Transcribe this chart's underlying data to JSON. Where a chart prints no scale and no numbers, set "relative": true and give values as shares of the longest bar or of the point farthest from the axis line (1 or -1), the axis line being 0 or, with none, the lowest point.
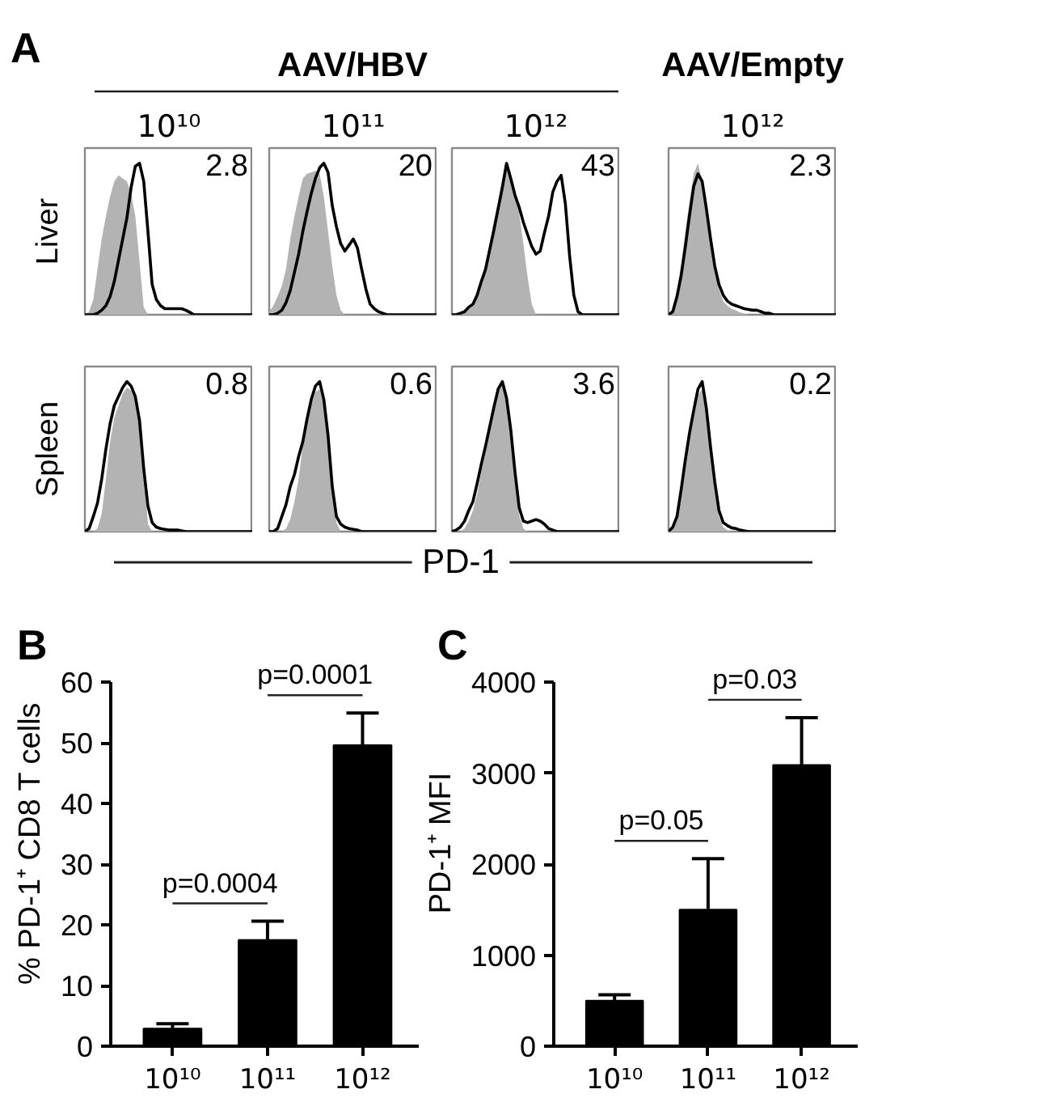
{
  "chart_data": [
    {
      "type": "other",
      "title": "A",
      "annotations": [
        "AAV/HBV",
        "AAV/Empty"
      ],
      "xlabel": "PD-1"
    },
    {
      "type": "area",
      "relative": true,
      "title": "10¹⁰",
      "ylabel": "Liver",
      "annotations": [
        "2.8"
      ],
      "categories": [
        null,
        null,
        null,
        null,
        null,
        null,
        null,
        null,
        null,
        null,
        null,
        null,
        null,
        null,
        null,
        null,
        null,
        null,
        null,
        null,
        null,
        null,
        null,
        null,
        null,
        null,
        null,
        null,
        null,
        null,
        null,
        null,
        null,
        null,
        null,
        null,
        null,
        null,
        null,
        null,
        null
      ],
      "series": [
        {
          "type": "area",
          "color": "#b3b3b3",
          "values": [
            0,
            0.02,
            0.1,
            0.3,
            0.5,
            0.65,
            0.78,
            0.88,
            0.92,
            0.9,
            0.88,
            0.8,
            0.65,
            0.35,
            0.05,
            0,
            0,
            0,
            0,
            0,
            0,
            0,
            0,
            0,
            0,
            0,
            0,
            0,
            0,
            0,
            0,
            0,
            0,
            0,
            0,
            0,
            0,
            0,
            0,
            0,
            0
          ]
        },
        {
          "type": "line",
          "color": "#000000",
          "values": [
            0,
            0,
            0,
            0.01,
            0.03,
            0.06,
            0.12,
            0.22,
            0.36,
            0.5,
            0.64,
            0.84,
            0.98,
            1,
            0.88,
            0.55,
            0.2,
            0.1,
            0.06,
            0.04,
            0.04,
            0.04,
            0.04,
            0.04,
            0.03,
            0.015,
            0,
            0,
            0,
            0,
            0,
            0,
            0,
            0,
            0,
            0,
            0,
            0,
            0,
            0,
            0
          ]
        }
      ]
    },
    {
      "type": "area",
      "relative": true,
      "title": "10¹¹",
      "annotations": [
        "20"
      ],
      "categories": [
        null,
        null,
        null,
        null,
        null,
        null,
        null,
        null,
        null,
        null,
        null,
        null,
        null,
        null,
        null,
        null,
        null,
        null,
        null,
        null,
        null,
        null,
        null,
        null,
        null,
        null,
        null,
        null,
        null,
        null,
        null,
        null,
        null,
        null,
        null,
        null,
        null,
        null,
        null,
        null,
        null
      ],
      "series": [
        {
          "type": "area",
          "color": "#b3b3b3",
          "values": [
            0.02,
            0.06,
            0.12,
            0.19,
            0.3,
            0.5,
            0.65,
            0.78,
            0.9,
            0.93,
            0.94,
            0.95,
            0.93,
            0.78,
            0.55,
            0.32,
            0.13,
            0.03,
            0,
            0,
            0,
            0,
            0,
            0,
            0,
            0,
            0,
            0,
            0,
            0,
            0,
            0,
            0,
            0,
            0,
            0,
            0,
            0,
            0,
            0,
            0
          ]
        },
        {
          "type": "line",
          "color": "#000000",
          "values": [
            0,
            0,
            0.01,
            0.03,
            0.08,
            0.16,
            0.28,
            0.4,
            0.55,
            0.68,
            0.8,
            0.9,
            0.97,
            1,
            0.94,
            0.72,
            0.58,
            0.47,
            0.42,
            0.46,
            0.5,
            0.44,
            0.3,
            0.17,
            0.07,
            0.04,
            0.02,
            0.01,
            0,
            0,
            0,
            0,
            0,
            0,
            0,
            0,
            0,
            0,
            0,
            0,
            0
          ]
        }
      ]
    },
    {
      "type": "area",
      "relative": true,
      "title": "10¹²",
      "annotations": [
        "43"
      ],
      "categories": [
        null,
        null,
        null,
        null,
        null,
        null,
        null,
        null,
        null,
        null,
        null,
        null,
        null,
        null,
        null,
        null,
        null,
        null,
        null,
        null,
        null,
        null,
        null,
        null,
        null,
        null,
        null,
        null,
        null,
        null,
        null,
        null,
        null,
        null,
        null,
        null,
        null,
        null,
        null,
        null,
        null
      ],
      "series": [
        {
          "type": "area",
          "color": "#b3b3b3",
          "values": [
            0,
            0,
            0.01,
            0.02,
            0.04,
            0.08,
            0.13,
            0.22,
            0.34,
            0.47,
            0.62,
            0.75,
            0.9,
            0.98,
            0.92,
            0.81,
            0.67,
            0.47,
            0.25,
            0.07,
            0,
            0,
            0,
            0,
            0,
            0,
            0,
            0,
            0,
            0,
            0,
            0,
            0,
            0,
            0,
            0,
            0,
            0,
            0,
            0,
            0
          ]
        },
        {
          "type": "line",
          "color": "#000000",
          "values": [
            0,
            0,
            0.01,
            0.02,
            0.05,
            0.07,
            0.13,
            0.22,
            0.3,
            0.43,
            0.56,
            0.7,
            0.84,
            1,
            0.9,
            0.79,
            0.71,
            0.61,
            0.53,
            0.45,
            0.4,
            0.42,
            0.54,
            0.65,
            0.81,
            0.88,
            0.92,
            0.73,
            0.39,
            0.13,
            0.02,
            0,
            0,
            0,
            0,
            0,
            0,
            0,
            0,
            0,
            0
          ]
        }
      ]
    },
    {
      "type": "area",
      "relative": true,
      "title": "10¹²",
      "annotations": [
        "2.3"
      ],
      "categories": [
        null,
        null,
        null,
        null,
        null,
        null,
        null,
        null,
        null,
        null,
        null,
        null,
        null,
        null,
        null,
        null,
        null,
        null,
        null,
        null,
        null,
        null,
        null,
        null,
        null,
        null,
        null,
        null,
        null,
        null,
        null,
        null,
        null,
        null,
        null,
        null,
        null,
        null,
        null,
        null,
        null
      ],
      "series": [
        {
          "type": "area",
          "color": "#b3b3b3",
          "values": [
            0,
            0.04,
            0.15,
            0.33,
            0.55,
            0.75,
            0.93,
            1,
            0.88,
            0.7,
            0.48,
            0.3,
            0.17,
            0.09,
            0.06,
            0.04,
            0.03,
            0.015,
            0.01,
            0,
            0,
            0,
            0,
            0,
            0,
            0,
            0,
            0,
            0,
            0,
            0,
            0,
            0,
            0,
            0,
            0,
            0,
            0,
            0,
            0,
            0
          ]
        },
        {
          "type": "line",
          "color": "#000000",
          "values": [
            0,
            0.02,
            0.12,
            0.26,
            0.45,
            0.66,
            0.85,
            0.93,
            0.88,
            0.7,
            0.5,
            0.32,
            0.2,
            0.13,
            0.09,
            0.07,
            0.06,
            0.05,
            0.04,
            0.035,
            0.03,
            0.03,
            0.02,
            0.01,
            0.01,
            0,
            0,
            0,
            0,
            0,
            0,
            0,
            0,
            0,
            0,
            0,
            0,
            0,
            0,
            0,
            0
          ]
        }
      ]
    },
    {
      "type": "area",
      "relative": true,
      "ylabel": "Spleen",
      "annotations": [
        "0.8"
      ],
      "categories": [
        null,
        null,
        null,
        null,
        null,
        null,
        null,
        null,
        null,
        null,
        null,
        null,
        null,
        null,
        null,
        null,
        null,
        null,
        null,
        null,
        null,
        null,
        null,
        null,
        null,
        null,
        null,
        null,
        null,
        null,
        null,
        null,
        null,
        null,
        null,
        null,
        null,
        null,
        null,
        null,
        null
      ],
      "series": [
        {
          "type": "area",
          "color": "#b3b3b3",
          "values": [
            0,
            0,
            0,
            0.02,
            0.12,
            0.35,
            0.6,
            0.76,
            0.84,
            0.92,
            0.96,
            0.94,
            0.88,
            0.72,
            0.4,
            0.05,
            0,
            0,
            0,
            0,
            0,
            0,
            0,
            0,
            0,
            0,
            0,
            0,
            0,
            0,
            0,
            0,
            0,
            0,
            0,
            0,
            0,
            0,
            0,
            0,
            0
          ]
        },
        {
          "type": "line",
          "color": "#000000",
          "values": [
            0,
            0.02,
            0.1,
            0.19,
            0.35,
            0.55,
            0.72,
            0.84,
            0.9,
            0.96,
            1,
            0.97,
            0.9,
            0.74,
            0.42,
            0.17,
            0.06,
            0.03,
            0.02,
            0.015,
            0.01,
            0.01,
            0.01,
            0.005,
            0,
            0,
            0,
            0,
            0,
            0,
            0,
            0,
            0,
            0,
            0,
            0,
            0,
            0,
            0,
            0,
            0
          ]
        }
      ]
    },
    {
      "type": "area",
      "relative": true,
      "annotations": [
        "0.6"
      ],
      "categories": [
        null,
        null,
        null,
        null,
        null,
        null,
        null,
        null,
        null,
        null,
        null,
        null,
        null,
        null,
        null,
        null,
        null,
        null,
        null,
        null,
        null,
        null,
        null,
        null,
        null,
        null,
        null,
        null,
        null,
        null,
        null,
        null,
        null,
        null,
        null,
        null,
        null,
        null,
        null,
        null,
        null
      ],
      "series": [
        {
          "type": "area",
          "color": "#b3b3b3",
          "values": [
            0,
            0,
            0,
            0,
            0.02,
            0.08,
            0.2,
            0.35,
            0.58,
            0.75,
            0.85,
            0.93,
            0.95,
            0.85,
            0.6,
            0.3,
            0.06,
            0,
            0,
            0,
            0,
            0,
            0,
            0,
            0,
            0,
            0,
            0,
            0,
            0,
            0,
            0,
            0,
            0,
            0,
            0,
            0,
            0,
            0,
            0,
            0
          ]
        },
        {
          "type": "line",
          "color": "#000000",
          "values": [
            0,
            0,
            0.02,
            0.1,
            0.18,
            0.3,
            0.38,
            0.5,
            0.6,
            0.75,
            0.88,
            0.97,
            1,
            0.88,
            0.64,
            0.3,
            0.1,
            0.05,
            0.03,
            0.02,
            0.015,
            0.01,
            0,
            0,
            0,
            0,
            0,
            0,
            0,
            0,
            0,
            0,
            0,
            0,
            0,
            0,
            0,
            0,
            0,
            0,
            0
          ]
        }
      ]
    },
    {
      "type": "area",
      "relative": true,
      "annotations": [
        "3.6"
      ],
      "categories": [
        null,
        null,
        null,
        null,
        null,
        null,
        null,
        null,
        null,
        null,
        null,
        null,
        null,
        null,
        null,
        null,
        null,
        null,
        null,
        null,
        null,
        null,
        null,
        null,
        null,
        null,
        null,
        null,
        null,
        null,
        null,
        null,
        null,
        null,
        null,
        null,
        null,
        null,
        null,
        null,
        null
      ],
      "series": [
        {
          "type": "area",
          "color": "#b3b3b3",
          "values": [
            0,
            0,
            0,
            0.02,
            0.07,
            0.14,
            0.25,
            0.4,
            0.53,
            0.68,
            0.82,
            0.93,
            0.98,
            0.86,
            0.62,
            0.34,
            0.11,
            0.02,
            0,
            0,
            0,
            0,
            0,
            0,
            0,
            0,
            0,
            0,
            0,
            0,
            0,
            0,
            0,
            0,
            0,
            0,
            0,
            0,
            0,
            0,
            0
          ]
        },
        {
          "type": "line",
          "color": "#000000",
          "values": [
            0,
            0.01,
            0.03,
            0.07,
            0.14,
            0.2,
            0.32,
            0.45,
            0.57,
            0.7,
            0.83,
            0.95,
            1,
            0.89,
            0.68,
            0.4,
            0.16,
            0.07,
            0.06,
            0.07,
            0.08,
            0.07,
            0.05,
            0.02,
            0.01,
            0,
            0,
            0,
            0,
            0,
            0,
            0,
            0,
            0,
            0,
            0,
            0,
            0,
            0,
            0,
            0
          ]
        }
      ]
    },
    {
      "type": "area",
      "relative": true,
      "annotations": [
        "0.2"
      ],
      "categories": [
        null,
        null,
        null,
        null,
        null,
        null,
        null,
        null,
        null,
        null,
        null,
        null,
        null,
        null,
        null,
        null,
        null,
        null,
        null,
        null,
        null,
        null,
        null,
        null,
        null,
        null,
        null,
        null,
        null,
        null,
        null,
        null,
        null,
        null,
        null,
        null,
        null,
        null,
        null,
        null,
        null
      ],
      "series": [
        {
          "type": "area",
          "color": "#b3b3b3",
          "values": [
            0,
            0.02,
            0.08,
            0.25,
            0.45,
            0.63,
            0.78,
            0.91,
            0.95,
            0.78,
            0.52,
            0.28,
            0.1,
            0.03,
            0.01,
            0,
            0,
            0,
            0,
            0,
            0,
            0,
            0,
            0,
            0,
            0,
            0,
            0,
            0,
            0,
            0,
            0,
            0,
            0,
            0,
            0,
            0,
            0,
            0,
            0,
            0
          ]
        },
        {
          "type": "line",
          "color": "#000000",
          "values": [
            0,
            0.03,
            0.1,
            0.28,
            0.48,
            0.66,
            0.81,
            0.95,
            1,
            0.82,
            0.56,
            0.33,
            0.14,
            0.06,
            0.04,
            0.025,
            0.02,
            0.01,
            0.005,
            0,
            0,
            0,
            0,
            0,
            0,
            0,
            0,
            0,
            0,
            0,
            0,
            0,
            0,
            0,
            0,
            0,
            0,
            0,
            0,
            0,
            0
          ]
        }
      ]
    },
    {
      "type": "bar",
      "title": "B",
      "categories": [
        "10¹⁰",
        "10¹¹",
        "10¹²"
      ],
      "values": [
        2.9,
        17.5,
        49.6
      ],
      "errors": [
        [
          2.9,
          3.7
        ],
        [
          17.5,
          20.6
        ],
        [
          49.6,
          54.9
        ]
      ],
      "color": "#000000",
      "ylabel": "% PD-1⁺ CD8 T cells",
      "ylim": [
        0,
        60
      ],
      "yticks": [
        0,
        10,
        20,
        30,
        40,
        50,
        60
      ],
      "annotations": [
        "p=0.0004",
        "p=0.0001"
      ]
    },
    {
      "type": "bar",
      "title": "C",
      "categories": [
        "10¹⁰",
        "10¹¹",
        "10¹²"
      ],
      "values": [
        500,
        1500,
        3090
      ],
      "errors": [
        [
          500,
          565
        ],
        [
          1500,
          2060
        ],
        [
          3090,
          3610
        ]
      ],
      "color": "#000000",
      "ylabel": "PD-1⁺ MFI",
      "ylim": [
        0,
        4000
      ],
      "yticks": [
        0,
        1000,
        2000,
        3000,
        4000
      ],
      "annotations": [
        "p=0.05",
        "p=0.03"
      ]
    }
  ]
}
